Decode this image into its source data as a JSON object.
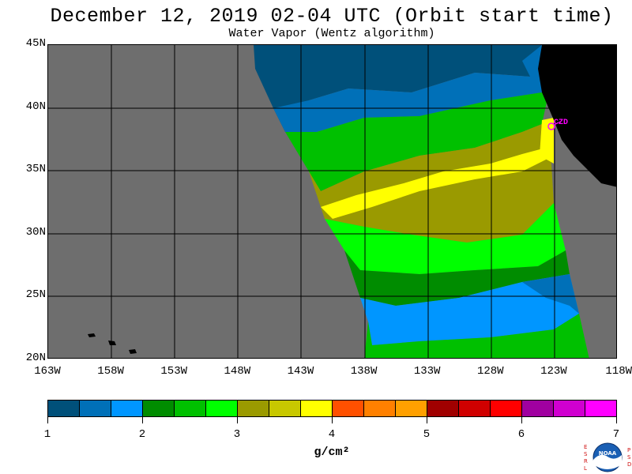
{
  "title": "December 12, 2019  02-04 UTC  (Orbit start time)",
  "subtitle": "Water Vapor (Wentz algorithm)",
  "map": {
    "lat_labels": [
      "45N",
      "40N",
      "35N",
      "30N",
      "25N",
      "20N"
    ],
    "lon_labels": [
      "163W",
      "158W",
      "153W",
      "148W",
      "143W",
      "138W",
      "133W",
      "128W",
      "123W",
      "118W"
    ],
    "station_label": "CZD",
    "colors": {
      "no_data": "#6e6e6e",
      "land": "#000000",
      "station": "#ff00ff"
    }
  },
  "colorbar": {
    "colors": [
      "#00507a",
      "#0070b8",
      "#0096ff",
      "#008c00",
      "#00c000",
      "#00ff00",
      "#9a9a00",
      "#c8c800",
      "#ffff00",
      "#ff5000",
      "#ff8000",
      "#ffa000",
      "#a00000",
      "#d00000",
      "#ff0000",
      "#a000a0",
      "#d000d0",
      "#ff00ff"
    ],
    "tick_labels": [
      "1",
      "2",
      "3",
      "4",
      "5",
      "6",
      "7"
    ],
    "units": "g/cm²"
  },
  "logo": {
    "text": "NOAA",
    "left_letters": [
      "E",
      "S",
      "R",
      "L"
    ],
    "right_letters": [
      "P",
      "S",
      "D"
    ]
  }
}
